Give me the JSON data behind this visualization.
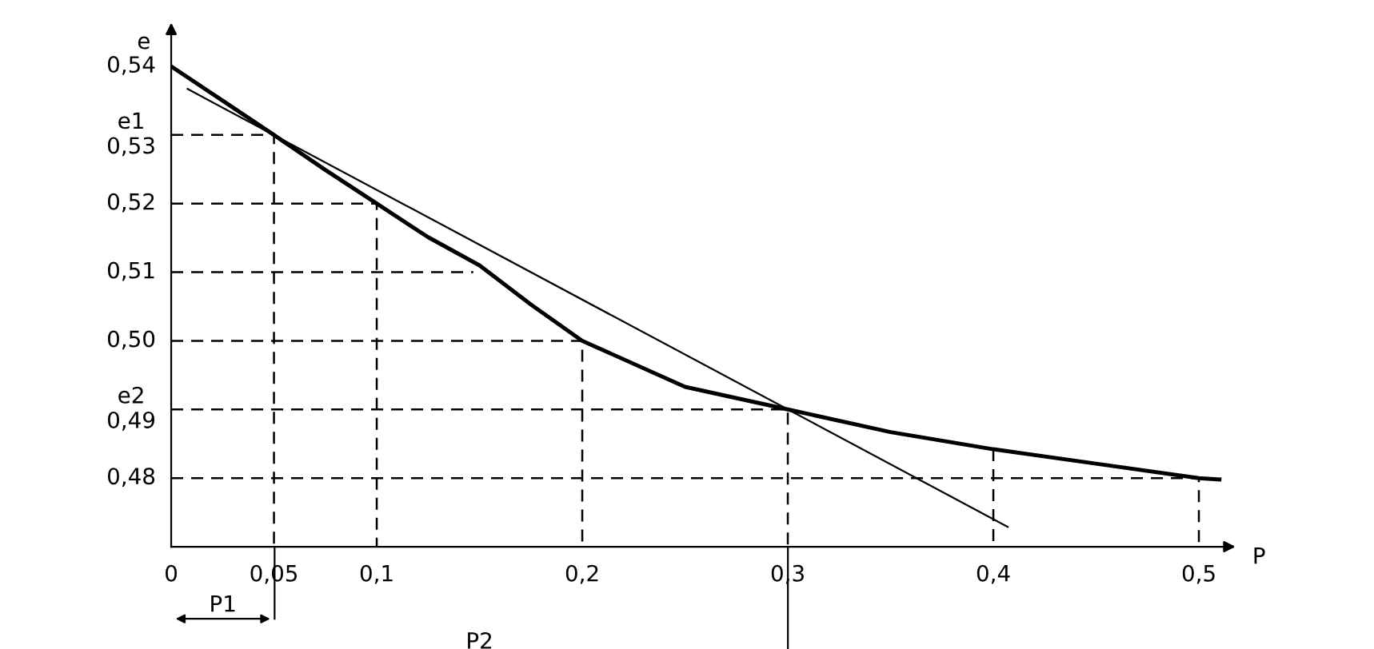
{
  "chart_data": {
    "type": "line",
    "xlabel": "P",
    "ylabel": "e",
    "xlim": [
      0,
      0.512
    ],
    "ylim": [
      0.47,
      0.545
    ],
    "xticks": [
      {
        "value": 0,
        "label": "0"
      },
      {
        "value": 0.05,
        "label": "0,05"
      },
      {
        "value": 0.1,
        "label": "0,1"
      },
      {
        "value": 0.2,
        "label": "0,2"
      },
      {
        "value": 0.3,
        "label": "0,3"
      },
      {
        "value": 0.4,
        "label": "0,4"
      },
      {
        "value": 0.5,
        "label": "0,5"
      }
    ],
    "yticks": [
      {
        "value": 0.48,
        "label": "0,48"
      },
      {
        "value": 0.49,
        "label": "e2\n0,49"
      },
      {
        "value": 0.5,
        "label": "0,50"
      },
      {
        "value": 0.51,
        "label": "0,51"
      },
      {
        "value": 0.52,
        "label": "0,52"
      },
      {
        "value": 0.53,
        "label": "e1\n0,53"
      },
      {
        "value": 0.54,
        "label": "0,54"
      }
    ],
    "grid": false,
    "marker": "none",
    "series": [
      {
        "color": "#000000",
        "line_style": "solid",
        "x": [
          0,
          0.025,
          0.05,
          0.075,
          0.1,
          0.125,
          0.15,
          0.175,
          0.2,
          0.25,
          0.3,
          0.35,
          0.4,
          0.45,
          0.5,
          0.51
        ],
        "values": [
          0.54,
          0.535,
          0.53,
          0.5249,
          0.52,
          0.5151,
          0.511,
          0.5053,
          0.5,
          0.4933,
          0.49,
          0.4867,
          0.4842,
          0.4821,
          0.48,
          0.4798
        ]
      },
      {
        "color": "#000000",
        "line_style": "solid",
        "x": [
          0.008,
          0.407
        ],
        "values": [
          0.5367,
          0.4729
        ]
      },
      {
        "color": "#000000",
        "line_style": "dashed",
        "x": [
          0,
          0.05,
          0.05
        ],
        "values": [
          0.53,
          0.53,
          0.47
        ]
      },
      {
        "color": "#000000",
        "line_style": "dashed",
        "x": [
          0,
          0.1,
          0.1
        ],
        "values": [
          0.52,
          0.52,
          0.47
        ]
      },
      {
        "color": "#000000",
        "line_style": "dashed",
        "x": [
          0,
          0.147
        ],
        "values": [
          0.51,
          0.51
        ]
      },
      {
        "color": "#000000",
        "line_style": "dashed",
        "x": [
          0,
          0.2,
          0.2
        ],
        "values": [
          0.5,
          0.5,
          0.47
        ]
      },
      {
        "color": "#000000",
        "line_style": "dashed",
        "x": [
          0,
          0.3,
          0.3
        ],
        "values": [
          0.49,
          0.49,
          0.47
        ]
      },
      {
        "color": "#000000",
        "line_style": "dashed",
        "x": [
          0.4,
          0.4
        ],
        "values": [
          0.4842,
          0.47
        ]
      },
      {
        "color": "#000000",
        "line_style": "dashed",
        "x": [
          0,
          0.5,
          0.5
        ],
        "values": [
          0.48,
          0.48,
          0.47
        ]
      }
    ],
    "annotations": [
      "P1",
      "P2"
    ]
  }
}
